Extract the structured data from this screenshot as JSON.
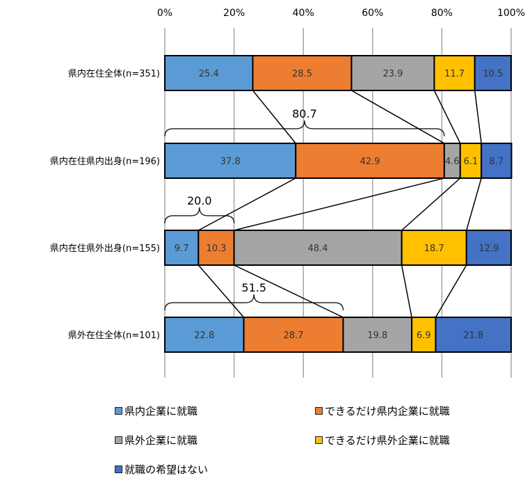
{
  "chart_data": {
    "type": "bar",
    "orientation": "horizontal-stacked-100",
    "xticks": [
      "0%",
      "20%",
      "40%",
      "60%",
      "80%",
      "100%"
    ],
    "xlim": [
      0,
      100
    ],
    "grid": true,
    "legend_position": "bottom",
    "categories": [
      "県内在住全体(n=351)",
      "県内在住県内出身(n=196)",
      "県内在住県外出身(n=155)",
      "県外在住全体(n=101)"
    ],
    "series": [
      {
        "name": "県内企業に就職",
        "color": "#5b9bd5",
        "values": [
          25.4,
          37.8,
          9.7,
          22.8
        ],
        "value_labels": [
          "25.4",
          "37.8",
          "9.7",
          "22.8"
        ]
      },
      {
        "name": "できるだけ県内企業に就職",
        "color": "#ed7d31",
        "values": [
          28.5,
          42.9,
          10.3,
          28.7
        ],
        "value_labels": [
          "28.5",
          "42.9",
          "10.3",
          "28.7"
        ]
      },
      {
        "name": "県外企業に就職",
        "color": "#a5a5a5",
        "values": [
          23.9,
          4.6,
          48.4,
          19.8
        ],
        "value_labels": [
          "23.9",
          "4.6",
          "48.4",
          "19.8"
        ]
      },
      {
        "name": "できるだけ県外企業に就職",
        "color": "#ffc000",
        "values": [
          11.7,
          6.1,
          18.7,
          6.9
        ],
        "value_labels": [
          "11.7",
          "6.1",
          "18.7",
          "6.9"
        ]
      },
      {
        "name": "就職の希望はない",
        "color": "#4472c4",
        "values": [
          10.5,
          8.7,
          12.9,
          21.8
        ],
        "value_labels": [
          "10.5",
          "8.7",
          "12.9",
          "21.8"
        ]
      }
    ],
    "annotations": [
      {
        "category_index": 1,
        "from": 0,
        "to": 80.7,
        "text": "80.7"
      },
      {
        "category_index": 2,
        "from": 0,
        "to": 20.0,
        "text": "20.0"
      },
      {
        "category_index": 3,
        "from": 0,
        "to": 51.5,
        "text": "51.5"
      }
    ]
  }
}
